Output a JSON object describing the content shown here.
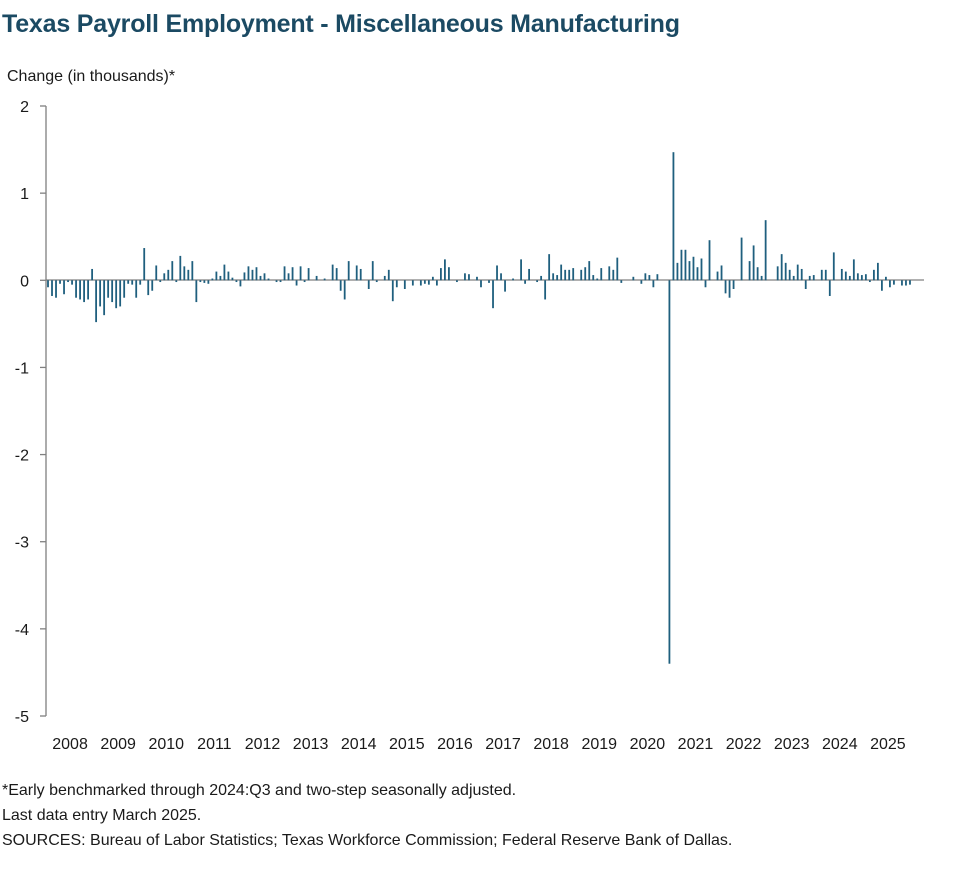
{
  "title": "Texas Payroll Employment - Miscellaneous Manufacturing",
  "notes": [
    "*Early benchmarked through 2024:Q3 and two-step seasonally adjusted.",
    "Last data entry March 2025.",
    "SOURCES: Bureau of Labor Statistics; Texas Workforce Commission; Federal Reserve Bank of Dallas."
  ],
  "colors": {
    "title": "#1b4a63",
    "bar": "#1f5f7e",
    "axis": "#808080"
  },
  "chart_data": {
    "type": "bar",
    "ylabel": "Change (in thousands)*",
    "ylim": [
      -5,
      2
    ],
    "yticks": [
      2,
      1,
      0,
      -1,
      -2,
      -3,
      -4,
      -5
    ],
    "x_start": "2008-01",
    "xtick_labels": [
      "2008",
      "2009",
      "2010",
      "2011",
      "2012",
      "2013",
      "2014",
      "2015",
      "2016",
      "2017",
      "2018",
      "2019",
      "2020",
      "2021",
      "2022",
      "2023",
      "2024",
      "2025"
    ],
    "series": [
      {
        "values": [
          -0.08,
          -0.18,
          -0.2,
          -0.04,
          -0.16,
          -0.02,
          -0.05,
          -0.2,
          -0.22,
          -0.25,
          -0.22,
          0.13,
          -0.48,
          -0.3,
          -0.4,
          -0.2,
          -0.25,
          -0.32,
          -0.3,
          -0.2,
          -0.04,
          -0.05,
          -0.2,
          -0.05,
          0.37,
          -0.17,
          -0.12,
          0.17,
          -0.02,
          0.08,
          0.12,
          0.22,
          -0.02,
          0.28,
          0.16,
          0.12,
          0.22,
          -0.25,
          -0.02,
          -0.03,
          -0.04,
          0.02,
          0.1,
          0.05,
          0.18,
          0.1,
          0.03,
          -0.02,
          -0.07,
          0.09,
          0.16,
          0.12,
          0.15,
          0.05,
          0.08,
          0.02,
          0.0,
          -0.02,
          -0.02,
          0.16,
          0.08,
          0.15,
          -0.06,
          0.16,
          -0.02,
          0.14,
          0.0,
          0.05,
          0.0,
          0.02,
          0.0,
          0.18,
          0.14,
          -0.12,
          -0.22,
          0.22,
          0.0,
          0.17,
          0.13,
          0.0,
          -0.1,
          0.22,
          -0.02,
          0.0,
          0.05,
          0.12,
          -0.24,
          -0.08,
          0.0,
          -0.1,
          0.0,
          -0.06,
          0.0,
          -0.06,
          -0.04,
          -0.05,
          0.04,
          -0.06,
          0.14,
          0.24,
          0.15,
          0.0,
          -0.02,
          0.0,
          0.08,
          0.07,
          0.0,
          0.04,
          -0.08,
          0.0,
          -0.03,
          -0.32,
          0.17,
          0.08,
          -0.13,
          0.0,
          0.02,
          0.0,
          0.24,
          -0.04,
          0.13,
          0.0,
          -0.02,
          0.05,
          -0.22,
          0.3,
          0.08,
          0.06,
          0.18,
          0.12,
          0.12,
          0.14,
          0.0,
          0.12,
          0.15,
          0.22,
          0.06,
          0.02,
          0.14,
          0.0,
          0.16,
          0.12,
          0.26,
          -0.03,
          0.0,
          0.0,
          0.04,
          0.0,
          -0.04,
          0.08,
          0.06,
          -0.08,
          0.07,
          0.0,
          0.0,
          -4.4,
          1.47,
          0.2,
          0.35,
          0.35,
          0.22,
          0.27,
          0.15,
          0.25,
          -0.08,
          0.46,
          0.0,
          0.1,
          0.17,
          -0.15,
          -0.2,
          -0.1,
          0.0,
          0.49,
          0.0,
          0.22,
          0.4,
          0.15,
          0.05,
          0.69,
          0.0,
          0.0,
          0.16,
          0.3,
          0.2,
          0.12,
          0.05,
          0.18,
          0.13,
          -0.1,
          0.05,
          0.06,
          0.0,
          0.12,
          0.12,
          -0.18,
          0.32,
          0.0,
          0.13,
          0.1,
          0.05,
          0.24,
          0.08,
          0.06,
          0.07,
          -0.02,
          0.12,
          0.2,
          -0.12,
          0.04,
          -0.08,
          -0.05,
          0.0,
          -0.06,
          -0.06,
          -0.05,
          0.0,
          0.0,
          0.0
        ]
      }
    ]
  }
}
